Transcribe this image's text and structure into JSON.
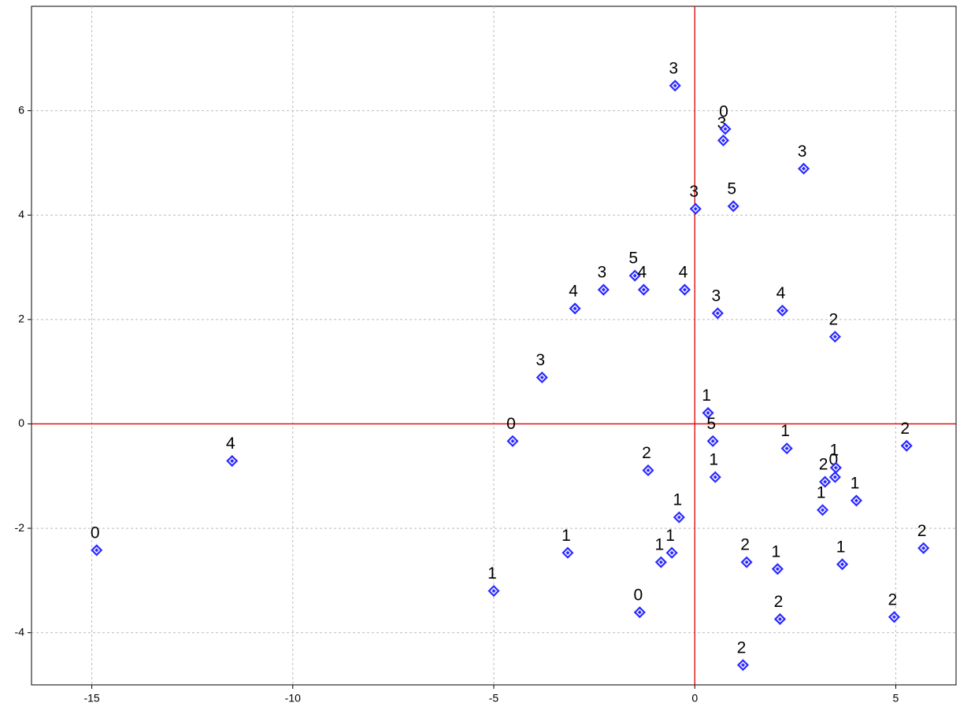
{
  "chart_data": {
    "type": "scatter",
    "x": [
      -14.88,
      -11.51,
      -5.0,
      -4.53,
      -3.8,
      -3.16,
      -2.98,
      -2.27,
      -1.49,
      -1.27,
      -1.16,
      -1.37,
      -0.84,
      -0.57,
      -0.39,
      -0.49,
      -0.25,
      0.02,
      0.33,
      0.45,
      0.51,
      0.57,
      0.71,
      0.76,
      0.96,
      1.2,
      1.29,
      2.06,
      2.12,
      2.18,
      2.29,
      2.71,
      3.18,
      3.24,
      3.49,
      3.51,
      3.49,
      3.67,
      4.02,
      4.96,
      5.27,
      5.69
    ],
    "values": [
      -2.42,
      -0.71,
      -3.2,
      -0.33,
      0.89,
      -2.47,
      2.21,
      2.57,
      2.84,
      2.57,
      -0.89,
      -3.61,
      -2.65,
      -2.47,
      -1.79,
      6.48,
      2.57,
      4.12,
      0.21,
      -0.33,
      -1.02,
      2.12,
      5.43,
      5.65,
      4.17,
      -4.62,
      -2.65,
      -2.78,
      -3.74,
      2.17,
      -0.47,
      4.89,
      -1.65,
      -1.11,
      -1.02,
      -0.84,
      1.67,
      -2.69,
      -1.47,
      -3.7,
      -0.42,
      -2.38
    ],
    "labels": [
      "0",
      "4",
      "1",
      "0",
      "3",
      "1",
      "4",
      "3",
      "5",
      "4",
      "2",
      "0",
      "1",
      "1",
      "1",
      "3",
      "4",
      "3",
      "1",
      "5",
      "1",
      "3",
      "3",
      "0",
      "5",
      "2",
      "2",
      "1",
      "2",
      "4",
      "1",
      "3",
      "1",
      "2",
      "0",
      "1",
      "2",
      "1",
      "1",
      "2",
      "2",
      "2"
    ],
    "color": "#2a2aff",
    "xlim": [
      -16.5,
      6.5
    ],
    "ylim": [
      -5,
      8
    ],
    "xticks": [
      -15,
      -10,
      -5,
      0,
      5
    ],
    "yticks": [
      -4,
      -2,
      0,
      2,
      4,
      6
    ],
    "grid": true,
    "reference_lines": {
      "x": 0,
      "y": 0,
      "color": "#e00000"
    }
  }
}
